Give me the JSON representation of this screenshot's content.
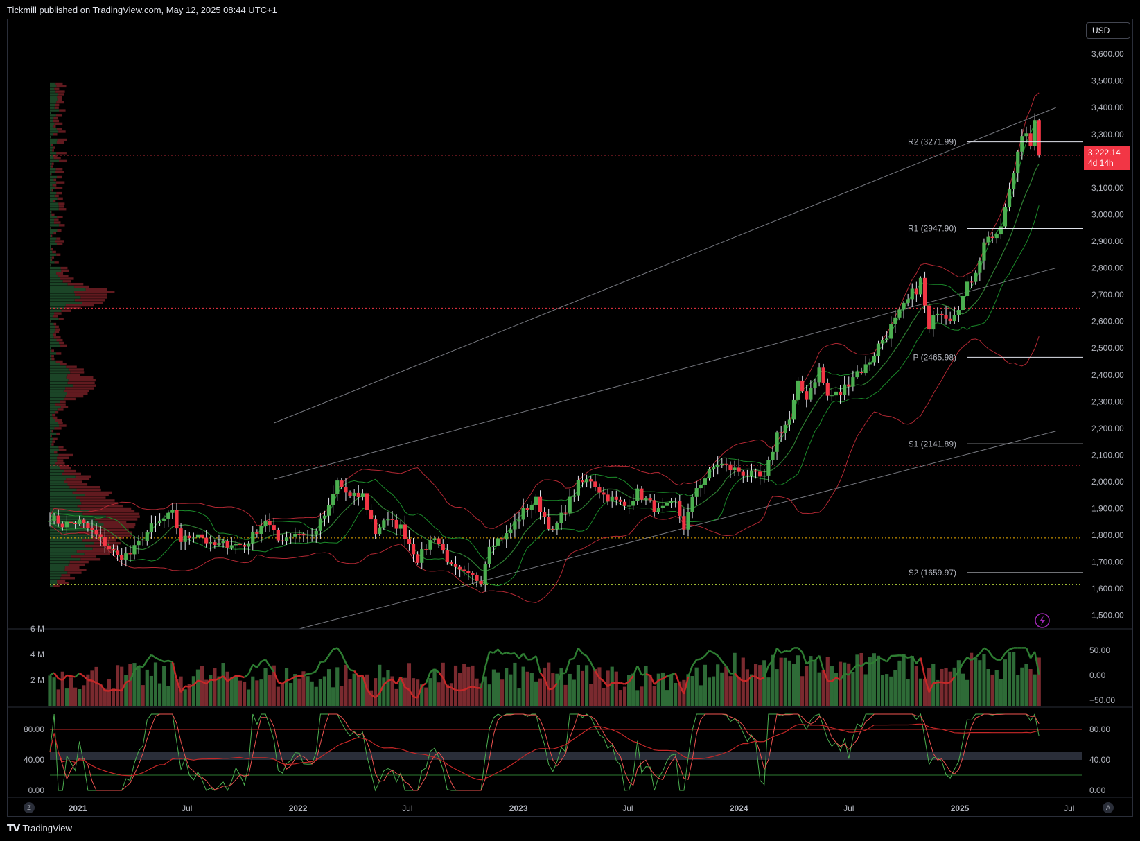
{
  "header": {
    "publisher_text": "Tickmill published on TradingView.com, May 12, 2025 08:44 UTC+1"
  },
  "footer": {
    "brand": "TradingView",
    "logo_icon": "tradingview-logo-icon"
  },
  "toolbar": {
    "currency": "USD",
    "zoom_button": "Z",
    "auto_button": "A",
    "alert_icon": "lightning-alert-icon"
  },
  "last_price": {
    "value": "3,222.14",
    "countdown": "4d 14h",
    "color": "#f23645"
  },
  "colors": {
    "up": "#089981",
    "up_candle": "#4caf50",
    "down": "#f23645",
    "band": "#b22833",
    "inner_band": "#1b8a2a",
    "grid": "#1e222d",
    "axis_text": "#b2b5be",
    "pivot": "#e0e3eb",
    "level_gold": "#f0b000",
    "level_lime": "#b4d13a",
    "level_red": "#f23645"
  },
  "chart_data": [
    {
      "type": "candlestick",
      "title": "",
      "timeframe": "weekly",
      "x_range": [
        "2020-11-16",
        "2025-07-15"
      ],
      "x_ticks": [
        "2021",
        "Jul",
        "2022",
        "Jul",
        "2023",
        "Jul",
        "2024",
        "Jul",
        "2025",
        "Jul"
      ],
      "y_ticks": [
        "1,500.00",
        "1,600.00",
        "1,700.00",
        "1,800.00",
        "1,900.00",
        "2,000.00",
        "2,100.00",
        "2,200.00",
        "2,300.00",
        "2,400.00",
        "2,500.00",
        "2,600.00",
        "2,700.00",
        "2,800.00",
        "2,900.00",
        "3,000.00",
        "3,100.00",
        "3,200.00",
        "3,300.00",
        "3,400.00",
        "3,500.00",
        "3,600.00"
      ],
      "ylim": [
        1450,
        3660
      ],
      "close_path": [
        [
          "2020-11-16",
          1870
        ],
        [
          "2020-12-07",
          1840
        ],
        [
          "2021-01-04",
          1850
        ],
        [
          "2021-02-01",
          1800
        ],
        [
          "2021-03-08",
          1720
        ],
        [
          "2021-03-29",
          1730
        ],
        [
          "2021-05-03",
          1830
        ],
        [
          "2021-06-07",
          1880
        ],
        [
          "2021-06-21",
          1780
        ],
        [
          "2021-07-19",
          1810
        ],
        [
          "2021-08-09",
          1760
        ],
        [
          "2021-09-13",
          1770
        ],
        [
          "2021-10-04",
          1760
        ],
        [
          "2021-11-08",
          1860
        ],
        [
          "2021-11-29",
          1780
        ],
        [
          "2021-12-27",
          1810
        ],
        [
          "2022-01-24",
          1800
        ],
        [
          "2022-02-21",
          1900
        ],
        [
          "2022-03-07",
          2000
        ],
        [
          "2022-03-28",
          1940
        ],
        [
          "2022-04-18",
          1950
        ],
        [
          "2022-05-09",
          1810
        ],
        [
          "2022-05-23",
          1860
        ],
        [
          "2022-06-20",
          1830
        ],
        [
          "2022-07-18",
          1710
        ],
        [
          "2022-08-15",
          1800
        ],
        [
          "2022-09-12",
          1680
        ],
        [
          "2022-09-26",
          1660
        ],
        [
          "2022-10-31",
          1630
        ],
        [
          "2022-11-14",
          1770
        ],
        [
          "2022-12-12",
          1800
        ],
        [
          "2023-01-09",
          1890
        ],
        [
          "2023-01-30",
          1930
        ],
        [
          "2023-02-27",
          1810
        ],
        [
          "2023-03-13",
          1870
        ],
        [
          "2023-04-10",
          1990
        ],
        [
          "2023-05-01",
          2010
        ],
        [
          "2023-05-22",
          1950
        ],
        [
          "2023-06-26",
          1910
        ],
        [
          "2023-07-17",
          1960
        ],
        [
          "2023-08-21",
          1890
        ],
        [
          "2023-09-18",
          1920
        ],
        [
          "2023-10-02",
          1830
        ],
        [
          "2023-10-23",
          1980
        ],
        [
          "2023-11-27",
          2070
        ],
        [
          "2023-12-18",
          2050
        ],
        [
          "2024-01-15",
          2030
        ],
        [
          "2024-02-12",
          2010
        ],
        [
          "2024-03-04",
          2180
        ],
        [
          "2024-03-25",
          2230
        ],
        [
          "2024-04-08",
          2360
        ],
        [
          "2024-04-22",
          2320
        ],
        [
          "2024-05-13",
          2420
        ],
        [
          "2024-05-27",
          2320
        ],
        [
          "2024-06-17",
          2330
        ],
        [
          "2024-07-08",
          2400
        ],
        [
          "2024-07-29",
          2430
        ],
        [
          "2024-08-19",
          2510
        ],
        [
          "2024-09-16",
          2600
        ],
        [
          "2024-09-30",
          2650
        ],
        [
          "2024-10-28",
          2750
        ],
        [
          "2024-11-11",
          2560
        ],
        [
          "2024-11-25",
          2650
        ],
        [
          "2024-12-16",
          2620
        ],
        [
          "2025-01-06",
          2690
        ],
        [
          "2025-01-27",
          2800
        ],
        [
          "2025-02-17",
          2930
        ],
        [
          "2025-03-03",
          2900
        ],
        [
          "2025-03-24",
          3080
        ],
        [
          "2025-04-07",
          3240
        ],
        [
          "2025-04-14",
          3320
        ],
        [
          "2025-04-21",
          3320
        ],
        [
          "2025-04-28",
          3240
        ],
        [
          "2025-05-05",
          3325
        ],
        [
          "2025-05-12",
          3222
        ]
      ],
      "pivots": [
        {
          "label": "R2 (3271.99)",
          "value": 3271.99
        },
        {
          "label": "R1 (2947.90)",
          "value": 2947.9
        },
        {
          "label": "P (2465.98)",
          "value": 2465.98
        },
        {
          "label": "S1 (2141.89)",
          "value": 2141.89
        },
        {
          "label": "S2 (1659.97)",
          "value": 1659.97
        }
      ],
      "horizontal_levels": [
        {
          "value": 2062,
          "style": "dotted",
          "color": "#f23645"
        },
        {
          "value": 1790,
          "style": "dotted",
          "color": "#f0b000"
        },
        {
          "value": 1615,
          "style": "dotted",
          "color": "#b4d13a"
        },
        {
          "value": 2650,
          "style": "dotted",
          "color": "#f23645"
        },
        {
          "value": 3222,
          "style": "dotted",
          "color": "#f23645"
        }
      ],
      "channel_lines": [
        {
          "from": [
            "2021-11-22",
            2220
          ],
          "to": [
            "2025-06-09",
            3400
          ]
        },
        {
          "from": [
            "2021-11-22",
            2010
          ],
          "to": [
            "2025-06-09",
            2800
          ]
        },
        {
          "from": [
            "2022-01-03",
            1450
          ],
          "to": [
            "2025-06-09",
            2190
          ]
        }
      ],
      "grid": false,
      "legend": "none"
    },
    {
      "type": "bar+line",
      "name": "volume_oscillator",
      "y_ticks_left": [
        "6 M",
        "4 M",
        "2 M"
      ],
      "y_ticks_right": [
        "50.00",
        "0.00",
        "−50.00"
      ]
    },
    {
      "type": "line",
      "name": "stochastic_rsi",
      "y_ticks_left": [
        "80.00",
        "40.00",
        "0.00"
      ],
      "y_ticks_right": [
        "80.00",
        "40.00",
        "0.00"
      ],
      "ylim": [
        0,
        100
      ],
      "levels": [
        80,
        20,
        50
      ]
    }
  ]
}
